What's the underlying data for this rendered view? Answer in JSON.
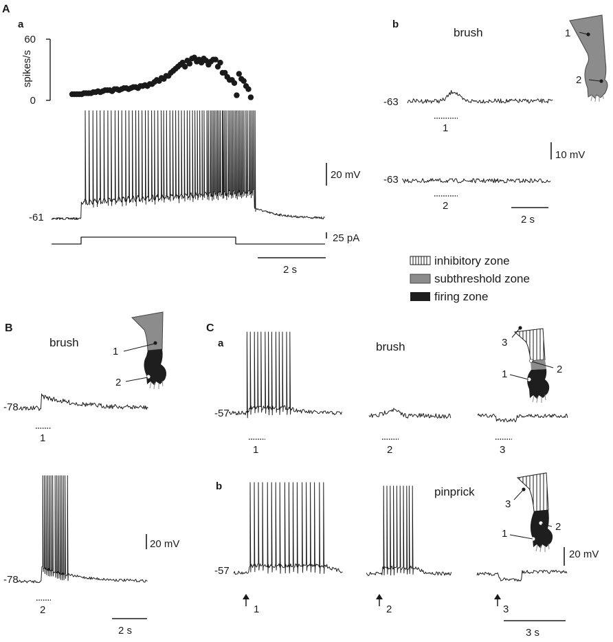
{
  "panels": {
    "A": "A",
    "B": "B",
    "C": "C"
  },
  "sub": {
    "Aa": "a",
    "Ab": "b",
    "Ca": "a",
    "Cb": "b"
  },
  "Aa": {
    "ylabel": "spikes/s",
    "yticks": [
      "60",
      "0"
    ],
    "rest": "-61",
    "scale_mv": "20 mV",
    "scale_pa": "25 pA",
    "scale_s": "2 s"
  },
  "Ab": {
    "title": "brush",
    "rest1": "-63",
    "rest2": "-63",
    "stim1": "1",
    "stim2": "2",
    "scale_mv": "10 mV",
    "scale_s": "2 s",
    "site1": "1",
    "site2": "2"
  },
  "legend": {
    "inhibitory": "inhibitory zone",
    "subthreshold": "subthreshold zone",
    "firing": "firing zone"
  },
  "B": {
    "title": "brush",
    "rest1": "-78",
    "rest2": "-78",
    "stim1": "1",
    "stim2": "2",
    "scale_mv": "20 mV",
    "scale_s": "2 s",
    "site1": "1",
    "site2": "2"
  },
  "Ca": {
    "title": "brush",
    "rest": "-57",
    "stim1": "1",
    "stim2": "2",
    "stim3": "3",
    "site1": "1",
    "site2": "2",
    "site3": "3"
  },
  "Cb": {
    "title": "pinprick",
    "rest": "-57",
    "stim1": "1",
    "stim2": "2",
    "stim3": "3",
    "site1": "1",
    "site2": "2",
    "site3": "3",
    "scale_mv": "20 mV",
    "scale_s": "3 s"
  },
  "chart_data": {
    "type": "scatter",
    "ylabel": "spikes/s",
    "ylim": [
      0,
      60
    ],
    "x": [
      0.0,
      0.06,
      0.12,
      0.18,
      0.24,
      0.3,
      0.36,
      0.42,
      0.48,
      0.54,
      0.6,
      0.66,
      0.72,
      0.78,
      0.84,
      0.9,
      0.96,
      1.02,
      1.08,
      1.14,
      1.2,
      1.26,
      1.32,
      1.38,
      1.44,
      1.5,
      1.56,
      1.62,
      1.68,
      1.74,
      1.8,
      1.86,
      1.92,
      1.98,
      2.04,
      2.1,
      2.16,
      2.22,
      2.28,
      2.34,
      2.4,
      2.46,
      2.52,
      2.58,
      2.64,
      2.7,
      2.76,
      2.82,
      2.88,
      2.94,
      3.0,
      3.06,
      3.12,
      3.18,
      3.24,
      3.3,
      3.36,
      3.42,
      3.48,
      3.54,
      3.6,
      3.66,
      3.72,
      3.78,
      3.84,
      3.9,
      3.96,
      4.02,
      4.08,
      4.14,
      4.2,
      4.26,
      4.32,
      4.38,
      4.44,
      4.5,
      4.56
    ],
    "values": [
      6,
      6,
      6,
      6,
      6,
      7,
      7,
      7,
      7,
      8,
      8,
      9,
      8,
      9,
      10,
      10,
      10,
      9,
      11,
      11,
      10,
      11,
      12,
      12,
      11,
      12,
      13,
      13,
      12,
      14,
      14,
      15,
      14,
      16,
      16,
      18,
      20,
      19,
      22,
      21,
      24,
      24,
      27,
      29,
      31,
      33,
      35,
      37,
      33,
      39,
      36,
      41,
      42,
      38,
      40,
      37,
      41,
      39,
      35,
      38,
      40,
      40,
      33,
      37,
      27,
      27,
      23,
      20,
      20,
      17,
      5,
      26,
      21,
      19,
      14,
      11,
      3
    ]
  }
}
